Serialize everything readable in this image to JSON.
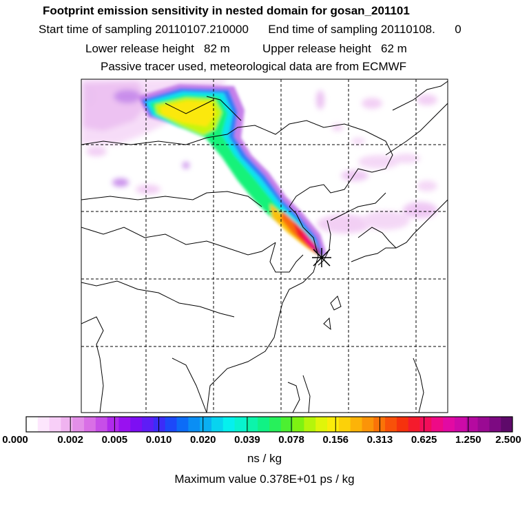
{
  "header": {
    "title": "Footprint emission sensitivity in nested domain for gosan_201101",
    "sampling": "Start time of sampling 20110107.210000      End time of sampling 20110108.      0",
    "release": "Lower release height   82 m          Upper release height   62 m",
    "tracer": "Passive tracer used, meteorological data are from ECMWF"
  },
  "colorbar": {
    "tick_labels": [
      "0.000",
      "0.002",
      "0.005",
      "0.010",
      "0.020",
      "0.039",
      "0.078",
      "0.156",
      "0.313",
      "0.625",
      "1.250",
      "2.500"
    ],
    "colors": [
      "#ffffff",
      "#fde6fd",
      "#f8cff8",
      "#f0b3f0",
      "#e38fe8",
      "#d96fe6",
      "#c74ee8",
      "#b02aec",
      "#9911f0",
      "#7d0ff3",
      "#5e1df6",
      "#3c2cf8",
      "#1c49f9",
      "#0c6cf7",
      "#0a8ef4",
      "#0aaff1",
      "#08d3ef",
      "#05f0ee",
      "#08f3cf",
      "#0cf4ab",
      "#10f285",
      "#27f05b",
      "#4cf031",
      "#7ef212",
      "#b5f50b",
      "#e0f50a",
      "#fbec0a",
      "#fcd109",
      "#fcb308",
      "#fb9408",
      "#fa7308",
      "#f85109",
      "#f6320d",
      "#f41b2c",
      "#f20d5a",
      "#ee0a86",
      "#e20aa3",
      "#cd0aa8",
      "#b50aa0",
      "#9a0a93",
      "#7d0a82",
      "#5e0a6a"
    ],
    "units": "ns / kg"
  },
  "footer": {
    "max_value": "Maximum value  0.378E+01 ps / kg"
  },
  "map": {
    "receptor_icon": "asterisk-receptor-icon"
  }
}
